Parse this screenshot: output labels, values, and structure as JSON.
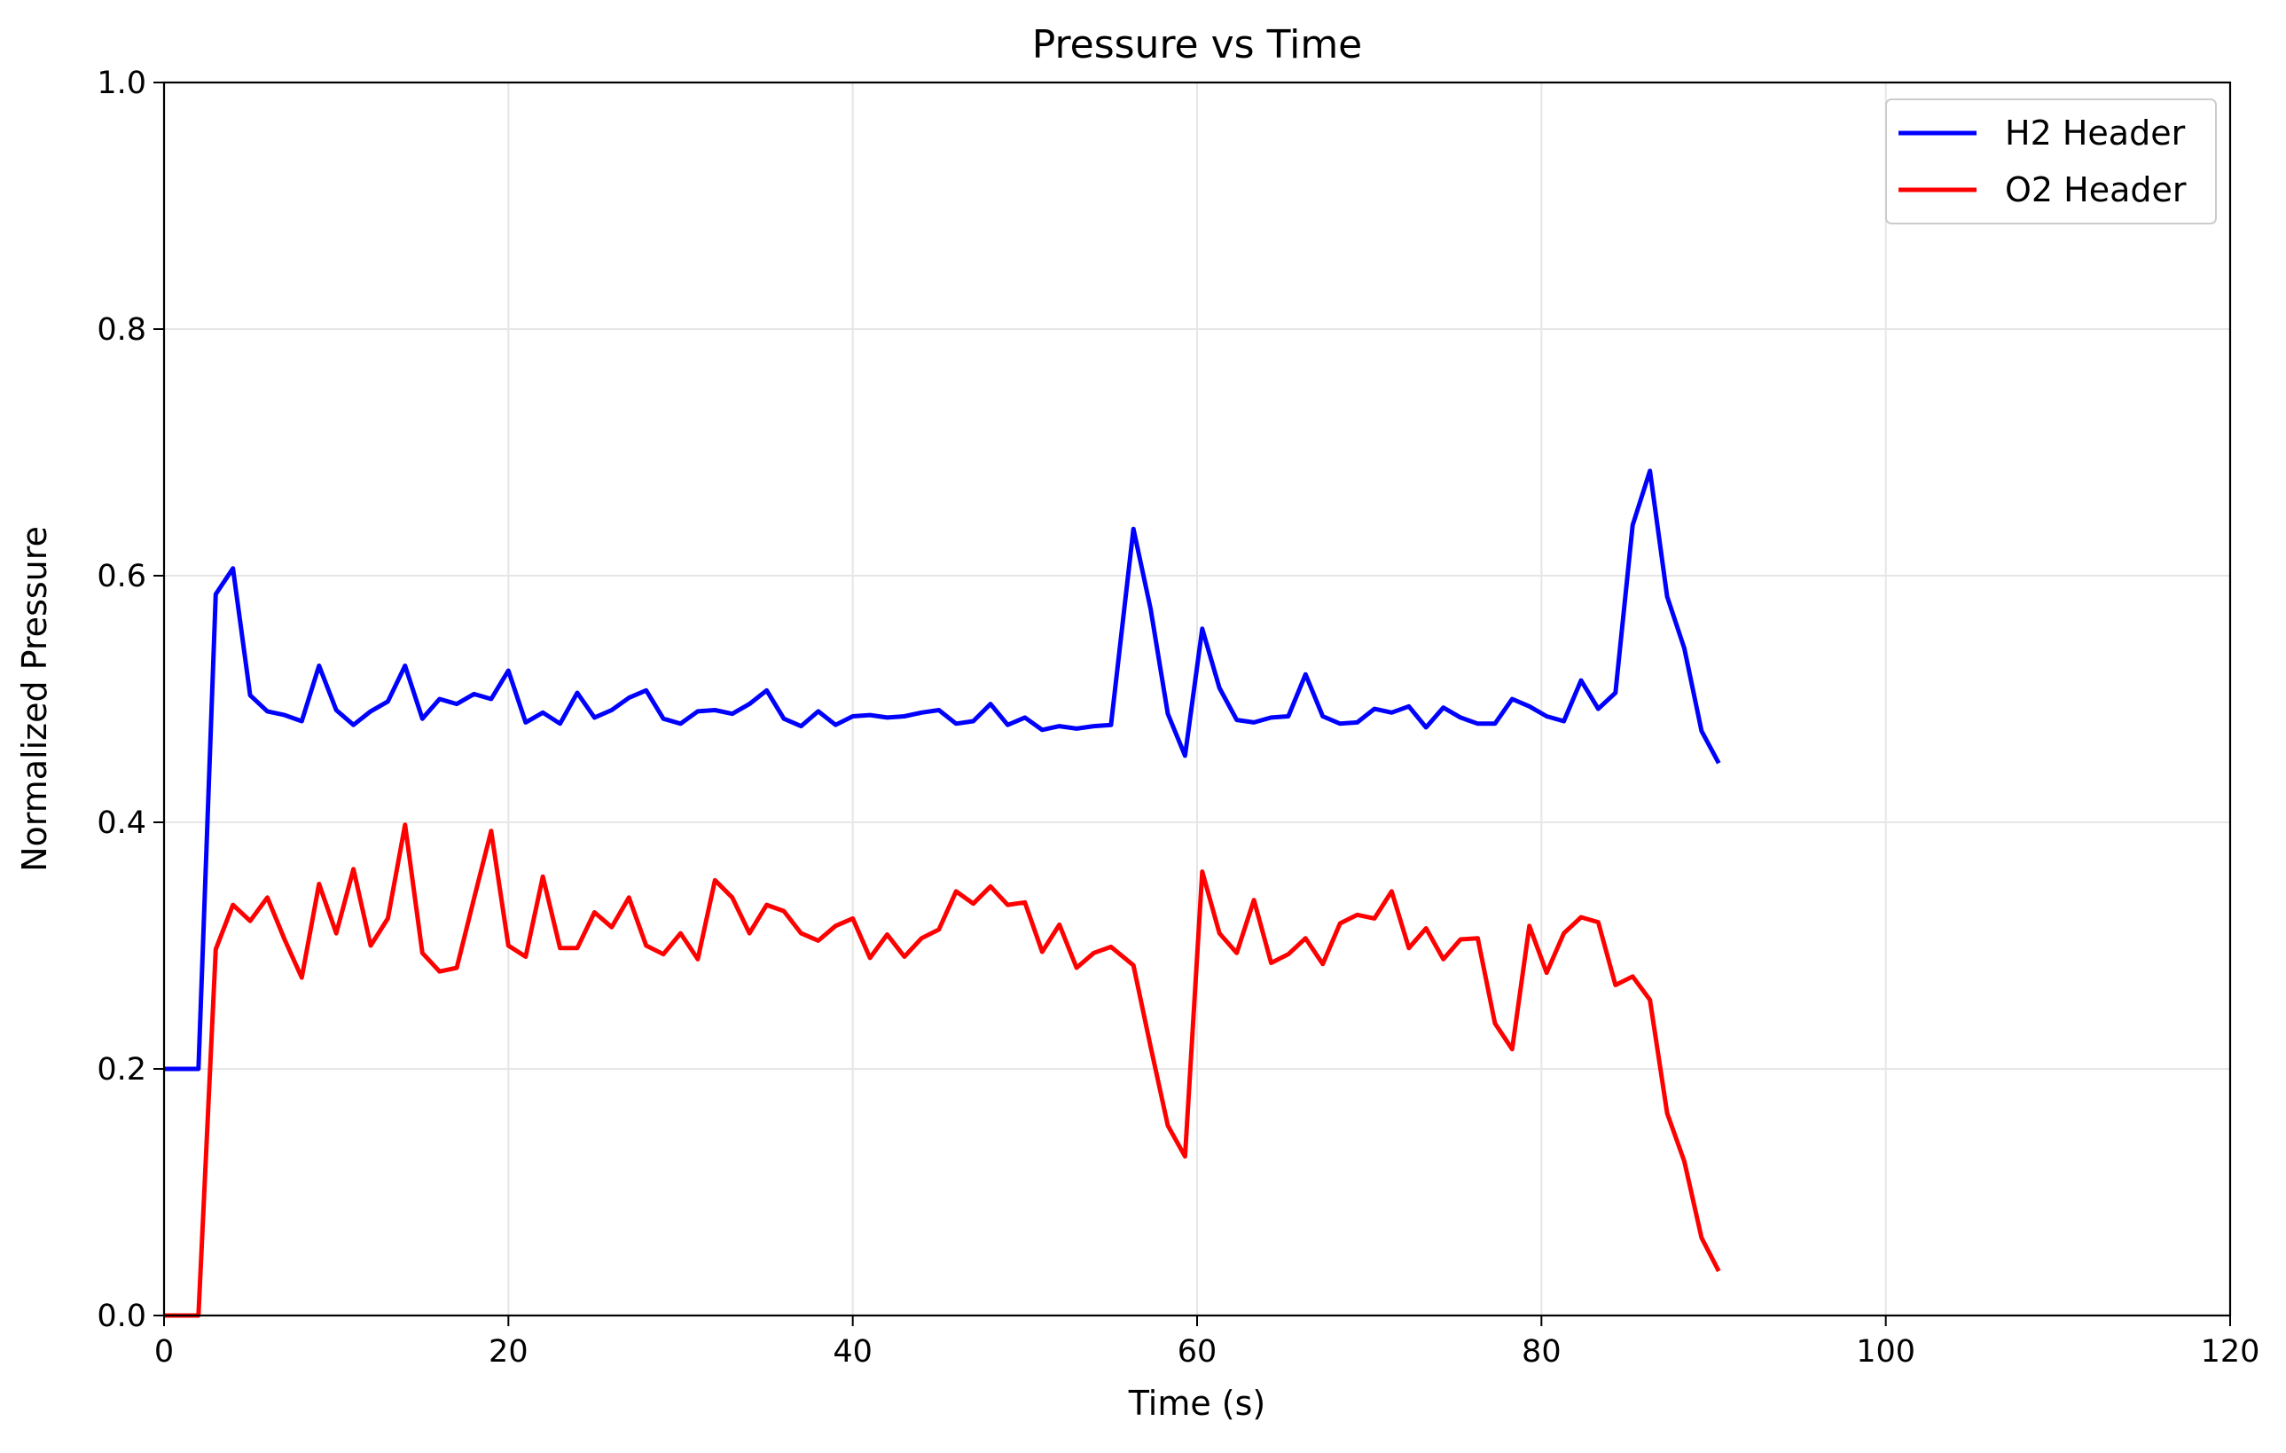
{
  "chart_data": {
    "type": "line",
    "title": "Pressure vs Time",
    "xlabel": "Time (s)",
    "ylabel": "Normalized Pressure",
    "xlim": [
      0,
      120
    ],
    "ylim": [
      0,
      1.0
    ],
    "x_ticks": [
      "0",
      "20",
      "40",
      "60",
      "80",
      "100",
      "120"
    ],
    "y_ticks": [
      "0.0",
      "0.2",
      "0.4",
      "0.6",
      "0.8",
      "1.0"
    ],
    "grid": true,
    "legend_position": "top-right",
    "series": [
      {
        "name": "H2 Header",
        "color": "#0000ff",
        "x": [
          0,
          1,
          2,
          3,
          4,
          5,
          6,
          7,
          8,
          9,
          10,
          11,
          12,
          13,
          14,
          15,
          16,
          17,
          18,
          19,
          20,
          21,
          22,
          23,
          24,
          25,
          26,
          27,
          28,
          29,
          30,
          31,
          32,
          33,
          34,
          35,
          36,
          37,
          38,
          39,
          40,
          41,
          42,
          43,
          44,
          45,
          46,
          47,
          48,
          49,
          50,
          51,
          52,
          53,
          54,
          55,
          56.3,
          57.3,
          58.3,
          59.3,
          60.3,
          61.3,
          62.3,
          63.3,
          64.3,
          65.3,
          66.3,
          67.3,
          68.3,
          69.3,
          70.3,
          71.3,
          72.3,
          73.3,
          74.3,
          75.3,
          76.3,
          77.3,
          78.3,
          79.3,
          80.3,
          81.3,
          82.3,
          83.3,
          84.3,
          85.3,
          86.3,
          87.3,
          88.3,
          89.3,
          90.3
        ],
        "y": [
          0.2,
          0.2,
          0.2,
          0.585,
          0.606,
          0.503,
          0.49,
          0.487,
          0.482,
          0.527,
          0.491,
          0.479,
          0.49,
          0.498,
          0.527,
          0.484,
          0.5,
          0.496,
          0.504,
          0.5,
          0.523,
          0.481,
          0.489,
          0.48,
          0.505,
          0.485,
          0.491,
          0.501,
          0.507,
          0.484,
          0.48,
          0.49,
          0.491,
          0.488,
          0.496,
          0.507,
          0.484,
          0.478,
          0.49,
          0.479,
          0.486,
          0.487,
          0.485,
          0.486,
          0.489,
          0.491,
          0.48,
          0.482,
          0.496,
          0.479,
          0.485,
          0.475,
          0.478,
          0.476,
          0.478,
          0.479,
          0.638,
          0.573,
          0.488,
          0.454,
          0.557,
          0.509,
          0.483,
          0.481,
          0.485,
          0.486,
          0.52,
          0.486,
          0.48,
          0.481,
          0.492,
          0.489,
          0.494,
          0.477,
          0.493,
          0.485,
          0.48,
          0.48,
          0.5,
          0.494,
          0.486,
          0.482,
          0.515,
          0.492,
          0.505,
          0.641,
          0.685,
          0.583,
          0.541,
          0.474,
          0.448
        ]
      },
      {
        "name": "O2 Header",
        "color": "#ff0000",
        "x": [
          0,
          1,
          2,
          3,
          4,
          5,
          6,
          7,
          8,
          9,
          10,
          11,
          12,
          13,
          14,
          15,
          16,
          17,
          18,
          19,
          20,
          21,
          22,
          23,
          24,
          25,
          26,
          27,
          28,
          29,
          30,
          31,
          32,
          33,
          34,
          35,
          36,
          37,
          38,
          39,
          40,
          41,
          42,
          43,
          44,
          45,
          46,
          47,
          48,
          49,
          50,
          51,
          52,
          53,
          54,
          55,
          56.3,
          57.3,
          58.3,
          59.3,
          60.3,
          61.3,
          62.3,
          63.3,
          64.3,
          65.3,
          66.3,
          67.3,
          68.3,
          69.3,
          70.3,
          71.3,
          72.3,
          73.3,
          74.3,
          75.3,
          76.3,
          77.3,
          78.3,
          79.3,
          80.3,
          81.3,
          82.3,
          83.3,
          84.3,
          85.3,
          86.3,
          87.3,
          88.3,
          89.3,
          90.3
        ],
        "y": [
          0.0,
          0.0,
          0.0,
          0.297,
          0.333,
          0.32,
          0.339,
          0.305,
          0.274,
          0.35,
          0.31,
          0.362,
          0.3,
          0.322,
          0.398,
          0.294,
          0.279,
          0.282,
          0.338,
          0.393,
          0.3,
          0.291,
          0.356,
          0.298,
          0.298,
          0.327,
          0.315,
          0.339,
          0.3,
          0.293,
          0.31,
          0.289,
          0.353,
          0.339,
          0.31,
          0.333,
          0.328,
          0.31,
          0.304,
          0.316,
          0.322,
          0.29,
          0.309,
          0.291,
          0.306,
          0.313,
          0.344,
          0.334,
          0.348,
          0.333,
          0.335,
          0.295,
          0.317,
          0.282,
          0.294,
          0.299,
          0.284,
          0.218,
          0.154,
          0.129,
          0.36,
          0.31,
          0.294,
          0.337,
          0.286,
          0.293,
          0.306,
          0.285,
          0.318,
          0.325,
          0.322,
          0.344,
          0.298,
          0.314,
          0.289,
          0.305,
          0.306,
          0.237,
          0.216,
          0.316,
          0.278,
          0.31,
          0.323,
          0.319,
          0.268,
          0.275,
          0.256,
          0.164,
          0.125,
          0.063,
          0.036
        ]
      }
    ]
  }
}
